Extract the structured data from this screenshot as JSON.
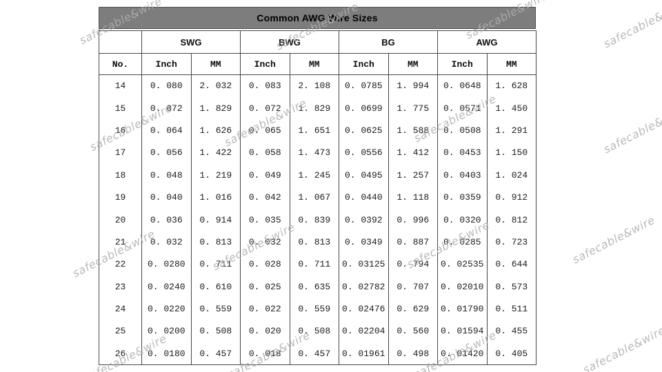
{
  "page": {
    "background": "#ffffff"
  },
  "title_bar": {
    "label": "Common AWG Wire Sizes",
    "background": "#7d7d7d",
    "text_color": "#000000"
  },
  "watermark": {
    "text": "safecable&wire",
    "color": "#b3b3b3"
  },
  "table": {
    "corner_label": "",
    "groups": [
      "SWG",
      "BWG",
      "BG",
      "AWG"
    ],
    "sub_headers": [
      "No.",
      "Inch",
      "MM",
      "Inch",
      "MM",
      "Inch",
      "MM",
      "Inch",
      "MM"
    ],
    "rows": [
      [
        "14",
        "0. 080",
        "2. 032",
        "0. 083",
        "2. 108",
        "0. 0785",
        "1. 994",
        "0. 0648",
        "1. 628"
      ],
      [
        "15",
        "0. 072",
        "1. 829",
        "0. 072",
        "1. 829",
        "0. 0699",
        "1. 775",
        "0. 0571",
        "1. 450"
      ],
      [
        "16",
        "0. 064",
        "1. 626",
        "0. 065",
        "1. 651",
        "0. 0625",
        "1. 588",
        "0. 0508",
        "1. 291"
      ],
      [
        "17",
        "0. 056",
        "1. 422",
        "0. 058",
        "1. 473",
        "0. 0556",
        "1. 412",
        "0. 0453",
        "1. 150"
      ],
      [
        "18",
        "0. 048",
        "1. 219",
        "0. 049",
        "1. 245",
        "0. 0495",
        "1. 257",
        "0. 0403",
        "1. 024"
      ],
      [
        "19",
        "0. 040",
        "1. 016",
        "0. 042",
        "1. 067",
        "0. 0440",
        "1. 118",
        "0. 0359",
        "0. 912"
      ],
      [
        "20",
        "0. 036",
        "0. 914",
        "0. 035",
        "0. 839",
        "0. 0392",
        "0. 996",
        "0. 0320",
        "0. 812"
      ],
      [
        "21",
        "0. 032",
        "0. 813",
        "0. 032",
        "0. 813",
        "0. 0349",
        "0. 887",
        "0. 0285",
        "0. 723"
      ],
      [
        "22",
        "0. 0280",
        "0. 711",
        "0. 028",
        "0. 711",
        "0. 03125",
        "0. 794",
        "0. 02535",
        "0. 644"
      ],
      [
        "23",
        "0. 0240",
        "0. 610",
        "0. 025",
        "0. 635",
        "0. 02782",
        "0. 707",
        "0. 02010",
        "0. 573"
      ],
      [
        "24",
        "0. 0220",
        "0. 559",
        "0. 022",
        "0. 559",
        "0. 02476",
        "0. 629",
        "0. 01790",
        "0. 511"
      ],
      [
        "25",
        "0. 0200",
        "0. 508",
        "0. 020",
        "0. 508",
        "0. 02204",
        "0. 560",
        "0. 01594",
        "0. 455"
      ],
      [
        "26",
        "0. 0180",
        "0. 457",
        "0. 018",
        "0. 457",
        "0. 01961",
        "0. 498",
        "0. 01420",
        "0. 405"
      ]
    ]
  }
}
